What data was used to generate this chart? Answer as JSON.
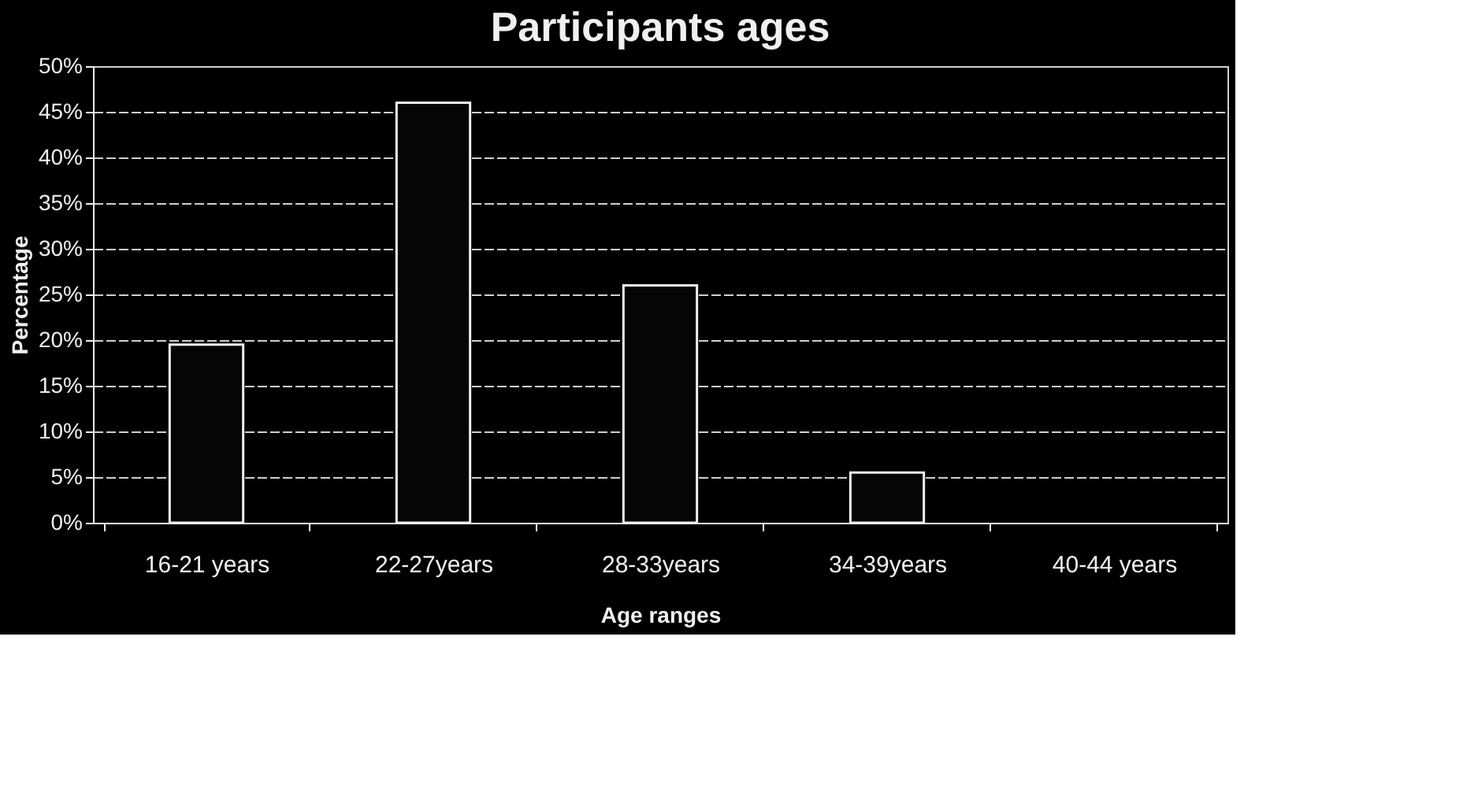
{
  "chart_data": {
    "type": "bar",
    "title": "Participants ages",
    "xlabel": "Age ranges",
    "ylabel": "Percentage",
    "categories": [
      "16-21 years",
      "22-27years",
      "28-33years",
      "34-39years",
      "40-44 years"
    ],
    "values": [
      19.5,
      46,
      26,
      5.5,
      0
    ],
    "color": "#050505",
    "ylim": [
      0,
      50
    ],
    "yticks": [
      {
        "value": 0,
        "label": "0%"
      },
      {
        "value": 5,
        "label": "5%"
      },
      {
        "value": 10,
        "label": "10%"
      },
      {
        "value": 15,
        "label": "15%"
      },
      {
        "value": 20,
        "label": "20%"
      },
      {
        "value": 25,
        "label": "25%"
      },
      {
        "value": 30,
        "label": "30%"
      },
      {
        "value": 35,
        "label": "35%"
      },
      {
        "value": 40,
        "label": "40%"
      },
      {
        "value": 45,
        "label": "45%"
      },
      {
        "value": 50,
        "label": "50%"
      }
    ],
    "grid": "y"
  }
}
